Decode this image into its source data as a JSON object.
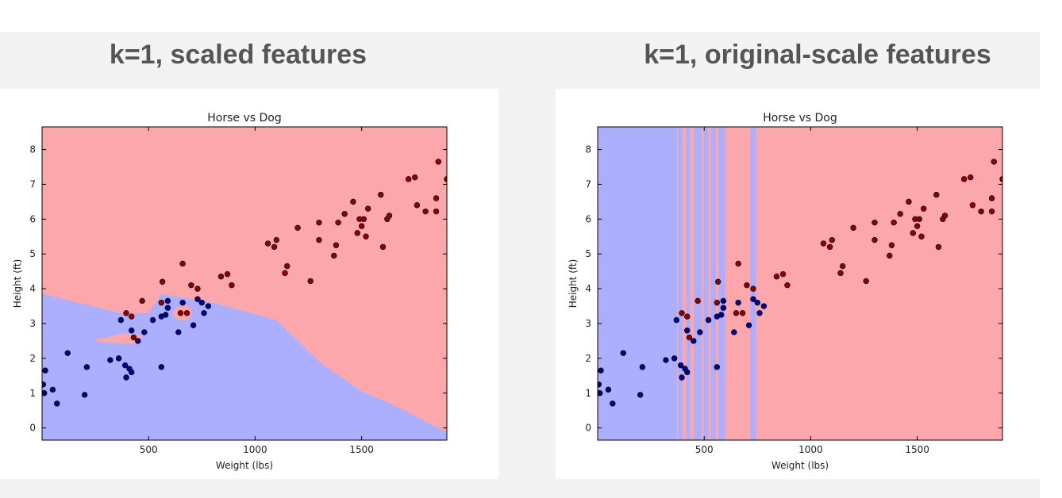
{
  "panels": [
    {
      "heading": "k=1, scaled features"
    },
    {
      "heading": "k=1, original-scale features"
    }
  ],
  "chart_data": [
    {
      "type": "scatter",
      "title": "Horse vs Dog",
      "xlabel": "Weight (lbs)",
      "ylabel": "Height (ft)",
      "xlim": [
        0,
        1900
      ],
      "ylim": [
        -0.35,
        8.65
      ],
      "xticks": [
        500,
        1000,
        1500
      ],
      "yticks": [
        0,
        1,
        2,
        3,
        4,
        5,
        6,
        7,
        8
      ],
      "grid": false,
      "colors": {
        "horse_region": "#fba7ab",
        "dog_region": "#abaffe",
        "horse_point": "#8b0000",
        "dog_point": "#00008b"
      },
      "decision_regions": {
        "background": "horse",
        "dog_polygon": [
          [
            0,
            3.85
          ],
          [
            380,
            3.28
          ],
          [
            500,
            3.3
          ],
          [
            560,
            3.85
          ],
          [
            800,
            3.6
          ],
          [
            1100,
            3.1
          ],
          [
            1300,
            1.9
          ],
          [
            1500,
            1.05
          ],
          [
            1650,
            0.65
          ],
          [
            1900,
            -0.13
          ],
          [
            1900,
            -0.35
          ],
          [
            0,
            -0.35
          ]
        ],
        "horse_islands": [
          {
            "polygon": [
              [
                245,
                2.55
              ],
              [
                305,
                2.6
              ],
              [
                380,
                2.72
              ],
              [
                455,
                2.68
              ],
              [
                470,
                2.58
              ],
              [
                430,
                2.4
              ],
              [
                330,
                2.45
              ],
              [
                255,
                2.48
              ]
            ]
          },
          {
            "polygon": [
              [
                612,
                3.33
              ],
              [
                630,
                3.46
              ],
              [
                660,
                3.52
              ],
              [
                690,
                3.5
              ],
              [
                705,
                3.35
              ],
              [
                690,
                3.15
              ],
              [
                660,
                3.08
              ],
              [
                625,
                3.15
              ]
            ]
          }
        ]
      },
      "series": [
        {
          "name": "",
          "class": "horse",
          "points": [
            [
              395,
              3.3
            ],
            [
              420,
              3.2
            ],
            [
              430,
              2.6
            ],
            [
              470,
              3.65
            ],
            [
              560,
              3.6
            ],
            [
              565,
              4.2
            ],
            [
              660,
              4.72
            ],
            [
              700,
              4.1
            ],
            [
              730,
              4.0
            ],
            [
              650,
              3.3
            ],
            [
              680,
              3.3
            ],
            [
              840,
              4.35
            ],
            [
              870,
              4.42
            ],
            [
              890,
              4.1
            ],
            [
              1060,
              5.3
            ],
            [
              1090,
              5.2
            ],
            [
              1100,
              5.4
            ],
            [
              1140,
              4.45
            ],
            [
              1150,
              4.65
            ],
            [
              1200,
              5.75
            ],
            [
              1260,
              4.22
            ],
            [
              1300,
              5.4
            ],
            [
              1300,
              5.9
            ],
            [
              1370,
              4.95
            ],
            [
              1380,
              5.25
            ],
            [
              1390,
              5.9
            ],
            [
              1420,
              6.15
            ],
            [
              1460,
              6.5
            ],
            [
              1480,
              5.6
            ],
            [
              1490,
              6.0
            ],
            [
              1500,
              5.8
            ],
            [
              1510,
              6.0
            ],
            [
              1520,
              5.5
            ],
            [
              1530,
              6.3
            ],
            [
              1590,
              6.7
            ],
            [
              1600,
              5.2
            ],
            [
              1620,
              6.0
            ],
            [
              1630,
              6.1
            ],
            [
              1720,
              7.15
            ],
            [
              1750,
              7.2
            ],
            [
              1760,
              6.4
            ],
            [
              1800,
              6.22
            ],
            [
              1850,
              6.6
            ],
            [
              1850,
              6.22
            ],
            [
              1860,
              7.65
            ],
            [
              1900,
              7.15
            ]
          ]
        },
        {
          "name": "",
          "class": "dog",
          "points": [
            [
              5,
              1.25
            ],
            [
              10,
              1.0
            ],
            [
              15,
              1.65
            ],
            [
              50,
              1.1
            ],
            [
              70,
              0.7
            ],
            [
              120,
              2.15
            ],
            [
              200,
              0.95
            ],
            [
              210,
              1.75
            ],
            [
              320,
              1.95
            ],
            [
              360,
              2.0
            ],
            [
              370,
              3.1
            ],
            [
              390,
              1.8
            ],
            [
              395,
              1.45
            ],
            [
              410,
              1.7
            ],
            [
              420,
              1.6
            ],
            [
              420,
              2.8
            ],
            [
              450,
              2.5
            ],
            [
              480,
              2.75
            ],
            [
              520,
              3.1
            ],
            [
              560,
              3.2
            ],
            [
              560,
              1.75
            ],
            [
              580,
              3.25
            ],
            [
              590,
              3.65
            ],
            [
              640,
              2.75
            ],
            [
              660,
              3.6
            ],
            [
              710,
              2.95
            ],
            [
              730,
              3.7
            ],
            [
              750,
              3.6
            ],
            [
              760,
              3.3
            ],
            [
              780,
              3.5
            ],
            [
              590,
              3.45
            ]
          ]
        }
      ]
    },
    {
      "type": "scatter",
      "title": "Horse vs Dog",
      "xlabel": "Weight (lbs)",
      "ylabel": "Height (ft)",
      "xlim": [
        0,
        1900
      ],
      "ylim": [
        -0.35,
        8.65
      ],
      "xticks": [
        500,
        1000,
        1500
      ],
      "yticks": [
        0,
        1,
        2,
        3,
        4,
        5,
        6,
        7,
        8
      ],
      "grid": false,
      "colors": {
        "horse_region": "#fba7ab",
        "dog_region": "#abaffe",
        "horse_point": "#8b0000",
        "dog_point": "#00008b"
      },
      "decision_regions": {
        "background": "horse",
        "dog_bands": [
          [
            0,
            372
          ],
          [
            377,
            398
          ],
          [
            416,
            435
          ],
          [
            452,
            487
          ],
          [
            497,
            520
          ],
          [
            532,
            555
          ],
          [
            567,
            598
          ],
          [
            716,
            743
          ]
        ]
      },
      "series": [
        {
          "name": "",
          "class": "horse",
          "points": [
            [
              395,
              3.3
            ],
            [
              420,
              3.2
            ],
            [
              430,
              2.6
            ],
            [
              470,
              3.65
            ],
            [
              560,
              3.6
            ],
            [
              565,
              4.2
            ],
            [
              660,
              4.72
            ],
            [
              700,
              4.1
            ],
            [
              730,
              4.0
            ],
            [
              650,
              3.3
            ],
            [
              680,
              3.3
            ],
            [
              840,
              4.35
            ],
            [
              870,
              4.42
            ],
            [
              890,
              4.1
            ],
            [
              1060,
              5.3
            ],
            [
              1090,
              5.2
            ],
            [
              1100,
              5.4
            ],
            [
              1140,
              4.45
            ],
            [
              1150,
              4.65
            ],
            [
              1200,
              5.75
            ],
            [
              1260,
              4.22
            ],
            [
              1300,
              5.4
            ],
            [
              1300,
              5.9
            ],
            [
              1370,
              4.95
            ],
            [
              1380,
              5.25
            ],
            [
              1390,
              5.9
            ],
            [
              1420,
              6.15
            ],
            [
              1460,
              6.5
            ],
            [
              1480,
              5.6
            ],
            [
              1490,
              6.0
            ],
            [
              1500,
              5.8
            ],
            [
              1510,
              6.0
            ],
            [
              1520,
              5.5
            ],
            [
              1530,
              6.3
            ],
            [
              1590,
              6.7
            ],
            [
              1600,
              5.2
            ],
            [
              1620,
              6.0
            ],
            [
              1630,
              6.1
            ],
            [
              1720,
              7.15
            ],
            [
              1750,
              7.2
            ],
            [
              1760,
              6.4
            ],
            [
              1800,
              6.22
            ],
            [
              1850,
              6.6
            ],
            [
              1850,
              6.22
            ],
            [
              1860,
              7.65
            ],
            [
              1900,
              7.15
            ]
          ]
        },
        {
          "name": "",
          "class": "dog",
          "points": [
            [
              5,
              1.25
            ],
            [
              10,
              1.0
            ],
            [
              15,
              1.65
            ],
            [
              50,
              1.1
            ],
            [
              70,
              0.7
            ],
            [
              120,
              2.15
            ],
            [
              200,
              0.95
            ],
            [
              210,
              1.75
            ],
            [
              320,
              1.95
            ],
            [
              360,
              2.0
            ],
            [
              370,
              3.1
            ],
            [
              390,
              1.8
            ],
            [
              395,
              1.45
            ],
            [
              410,
              1.7
            ],
            [
              420,
              1.6
            ],
            [
              420,
              2.8
            ],
            [
              450,
              2.5
            ],
            [
              480,
              2.75
            ],
            [
              520,
              3.1
            ],
            [
              560,
              3.2
            ],
            [
              560,
              1.75
            ],
            [
              580,
              3.25
            ],
            [
              590,
              3.65
            ],
            [
              640,
              2.75
            ],
            [
              660,
              3.6
            ],
            [
              710,
              2.95
            ],
            [
              730,
              3.7
            ],
            [
              750,
              3.6
            ],
            [
              760,
              3.3
            ],
            [
              780,
              3.5
            ],
            [
              590,
              3.45
            ]
          ]
        }
      ]
    }
  ]
}
